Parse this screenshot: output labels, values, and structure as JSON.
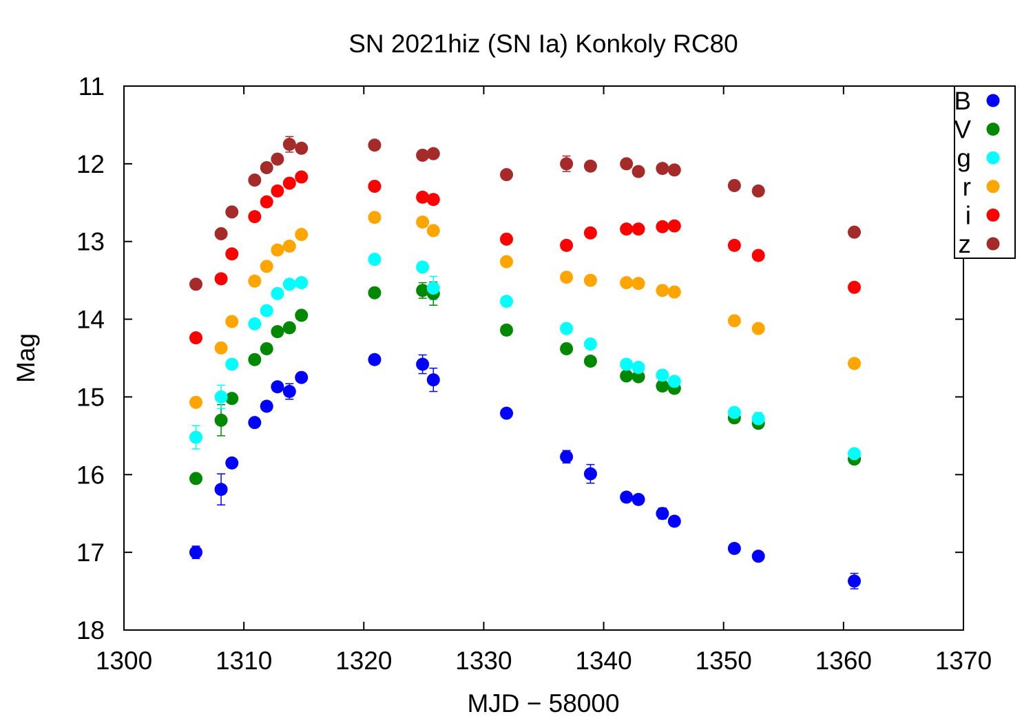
{
  "chart_data": {
    "type": "scatter",
    "title": "SN 2021hiz (SN Ia) Konkoly RC80",
    "xlabel": "MJD − 58000",
    "ylabel": "Mag",
    "xlim": [
      1300,
      1370
    ],
    "ylim": [
      18,
      11
    ],
    "y_inverted": true,
    "grid": false,
    "legend_position": "top-right",
    "x_ticks": [
      "1300",
      "1310",
      "1320",
      "1330",
      "1340",
      "1350",
      "1360",
      "1370"
    ],
    "y_ticks": [
      "11",
      "12",
      "13",
      "14",
      "15",
      "16",
      "17",
      "18"
    ],
    "series": [
      {
        "name": "B",
        "color": "#0000ff",
        "x": [
          1306,
          1308.1,
          1309,
          1310.9,
          1311.9,
          1312.8,
          1313.8,
          1314.8,
          1320.9,
          1324.9,
          1325.8,
          1331.9,
          1336.9,
          1338.9,
          1341.9,
          1342.9,
          1344.9,
          1345.9,
          1350.9,
          1352.9,
          1360.9
        ],
        "y": [
          17.0,
          16.19,
          15.85,
          15.33,
          15.12,
          14.87,
          14.93,
          14.75,
          14.52,
          14.58,
          14.78,
          15.21,
          15.77,
          15.99,
          16.29,
          16.32,
          16.5,
          16.6,
          16.95,
          17.05,
          17.37
        ],
        "err": [
          0.08,
          0.2,
          0.05,
          0.04,
          0.04,
          0.05,
          0.1,
          0.04,
          0.04,
          0.12,
          0.15,
          0.04,
          0.08,
          0.12,
          0.06,
          0.05,
          0.07,
          0.06,
          0.05,
          0.06,
          0.1
        ]
      },
      {
        "name": "V",
        "color": "#008800",
        "x": [
          1306,
          1308.1,
          1309,
          1310.9,
          1311.9,
          1312.8,
          1313.8,
          1314.8,
          1320.9,
          1324.9,
          1325.8,
          1331.9,
          1336.9,
          1338.9,
          1341.9,
          1342.9,
          1344.9,
          1345.9,
          1350.9,
          1352.9,
          1360.9
        ],
        "y": [
          16.05,
          15.3,
          15.02,
          14.52,
          14.38,
          14.16,
          14.11,
          13.95,
          13.66,
          13.63,
          13.67,
          14.14,
          14.38,
          14.54,
          14.73,
          14.74,
          14.86,
          14.89,
          15.27,
          15.34,
          15.8
        ],
        "err": [
          0.03,
          0.2,
          0.03,
          0.03,
          0.03,
          0.03,
          0.03,
          0.03,
          0.03,
          0.1,
          0.15,
          0.03,
          0.03,
          0.03,
          0.03,
          0.03,
          0.03,
          0.03,
          0.03,
          0.03,
          0.03
        ]
      },
      {
        "name": "g",
        "color": "#00ffff",
        "x": [
          1306,
          1308.1,
          1309,
          1310.9,
          1311.9,
          1312.8,
          1313.8,
          1314.8,
          1320.9,
          1324.9,
          1325.8,
          1331.9,
          1336.9,
          1338.9,
          1341.9,
          1342.9,
          1344.9,
          1345.9,
          1350.9,
          1352.9,
          1360.9
        ],
        "y": [
          15.52,
          15.0,
          14.58,
          14.06,
          13.89,
          13.67,
          13.55,
          13.53,
          13.23,
          13.33,
          13.6,
          13.77,
          14.12,
          14.32,
          14.58,
          14.62,
          14.72,
          14.8,
          15.2,
          15.28,
          15.73
        ],
        "err": [
          0.15,
          0.15,
          0.03,
          0.03,
          0.03,
          0.03,
          0.03,
          0.03,
          0.03,
          0.03,
          0.15,
          0.03,
          0.03,
          0.03,
          0.05,
          0.03,
          0.06,
          0.05,
          0.03,
          0.08,
          0.05
        ]
      },
      {
        "name": "r",
        "color": "#ffa500",
        "x": [
          1306,
          1308.1,
          1309,
          1310.9,
          1311.9,
          1312.8,
          1313.8,
          1314.8,
          1320.9,
          1324.9,
          1325.8,
          1331.9,
          1336.9,
          1338.9,
          1341.9,
          1342.9,
          1344.9,
          1345.9,
          1350.9,
          1352.9,
          1360.9
        ],
        "y": [
          15.07,
          14.37,
          14.03,
          13.51,
          13.32,
          13.11,
          13.06,
          12.91,
          12.69,
          12.75,
          12.86,
          13.26,
          13.46,
          13.5,
          13.53,
          13.54,
          13.63,
          13.65,
          14.02,
          14.12,
          14.57
        ],
        "err": [
          0.03,
          0.03,
          0.03,
          0.03,
          0.03,
          0.03,
          0.03,
          0.03,
          0.03,
          0.03,
          0.03,
          0.03,
          0.03,
          0.03,
          0.03,
          0.03,
          0.03,
          0.03,
          0.03,
          0.03,
          0.03
        ]
      },
      {
        "name": "i",
        "color": "#ff0000",
        "x": [
          1306,
          1308.1,
          1309,
          1310.9,
          1311.9,
          1312.8,
          1313.8,
          1314.8,
          1320.9,
          1324.9,
          1325.8,
          1331.9,
          1336.9,
          1338.9,
          1341.9,
          1342.9,
          1344.9,
          1345.9,
          1350.9,
          1352.9,
          1360.9
        ],
        "y": [
          14.24,
          13.48,
          13.16,
          12.68,
          12.49,
          12.35,
          12.25,
          12.17,
          12.29,
          12.43,
          12.46,
          12.97,
          13.05,
          12.89,
          12.84,
          12.84,
          12.81,
          12.8,
          13.05,
          13.18,
          13.59
        ],
        "err": [
          0.03,
          0.03,
          0.03,
          0.03,
          0.03,
          0.03,
          0.03,
          0.03,
          0.03,
          0.03,
          0.03,
          0.03,
          0.03,
          0.03,
          0.03,
          0.03,
          0.03,
          0.03,
          0.03,
          0.03,
          0.03
        ]
      },
      {
        "name": "z",
        "color": "#a52a2a",
        "x": [
          1306,
          1308.1,
          1309,
          1310.9,
          1311.9,
          1312.8,
          1313.8,
          1314.8,
          1320.9,
          1324.9,
          1325.8,
          1331.9,
          1336.9,
          1338.9,
          1341.9,
          1342.9,
          1344.9,
          1345.9,
          1350.9,
          1352.9,
          1360.9
        ],
        "y": [
          13.55,
          12.9,
          12.62,
          12.21,
          12.05,
          11.94,
          11.75,
          11.8,
          11.76,
          11.89,
          11.87,
          12.14,
          12.0,
          12.03,
          12.0,
          12.1,
          12.06,
          12.08,
          12.28,
          12.35,
          12.88
        ],
        "err": [
          0.05,
          0.03,
          0.03,
          0.03,
          0.03,
          0.03,
          0.1,
          0.03,
          0.03,
          0.03,
          0.03,
          0.03,
          0.1,
          0.03,
          0.03,
          0.03,
          0.03,
          0.03,
          0.03,
          0.03,
          0.03
        ]
      }
    ]
  }
}
